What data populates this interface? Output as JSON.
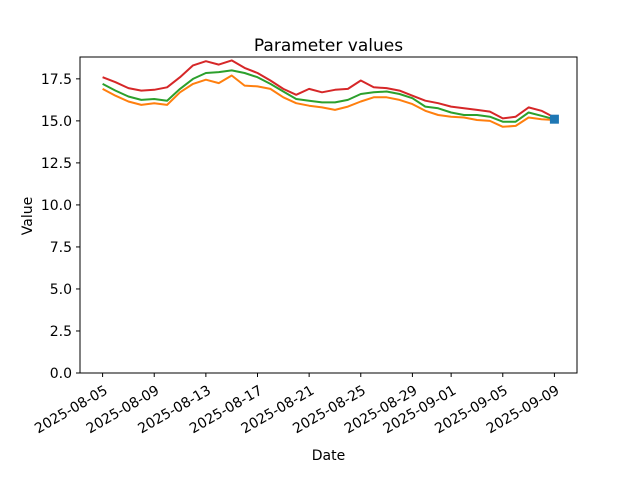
{
  "figure": {
    "background": "#ffffff"
  },
  "chart_data": {
    "type": "line",
    "title": "Parameter values",
    "xlabel": "Date",
    "ylabel": "Value",
    "grid": false,
    "legend": null,
    "x_tick_rotation": 30,
    "ylim": [
      0,
      18.8
    ],
    "yticks": [
      0.0,
      2.5,
      5.0,
      7.5,
      10.0,
      12.5,
      15.0,
      17.5
    ],
    "x": [
      "2025-08-05",
      "2025-08-06",
      "2025-08-07",
      "2025-08-08",
      "2025-08-09",
      "2025-08-10",
      "2025-08-11",
      "2025-08-12",
      "2025-08-13",
      "2025-08-14",
      "2025-08-15",
      "2025-08-16",
      "2025-08-17",
      "2025-08-18",
      "2025-08-19",
      "2025-08-20",
      "2025-08-21",
      "2025-08-22",
      "2025-08-23",
      "2025-08-24",
      "2025-08-25",
      "2025-08-26",
      "2025-08-27",
      "2025-08-28",
      "2025-08-29",
      "2025-08-30",
      "2025-08-31",
      "2025-09-01",
      "2025-09-02",
      "2025-09-03",
      "2025-09-04",
      "2025-09-05",
      "2025-09-06",
      "2025-09-07",
      "2025-09-08",
      "2025-09-09"
    ],
    "xtick_indices": [
      0,
      4,
      8,
      12,
      16,
      20,
      24,
      27,
      31,
      35
    ],
    "xtick_labels": [
      "2025-08-05",
      "2025-08-09",
      "2025-08-13",
      "2025-08-17",
      "2025-08-21",
      "2025-08-25",
      "2025-08-29",
      "2025-09-01",
      "2025-09-05",
      "2025-09-09"
    ],
    "series": [
      {
        "name": "parameter-orange",
        "color": "#ff7f0e",
        "marker": null,
        "values": [
          16.9,
          16.5,
          16.15,
          15.95,
          16.05,
          15.95,
          16.7,
          17.2,
          17.45,
          17.25,
          17.7,
          17.1,
          17.05,
          16.9,
          16.4,
          16.05,
          15.9,
          15.8,
          15.65,
          15.85,
          16.15,
          16.4,
          16.4,
          16.25,
          16.0,
          15.6,
          15.35,
          15.25,
          15.2,
          15.05,
          15.0,
          14.65,
          14.7,
          15.2,
          15.1,
          15.05
        ]
      },
      {
        "name": "parameter-green",
        "color": "#2ca02c",
        "marker": null,
        "values": [
          17.2,
          16.8,
          16.45,
          16.25,
          16.3,
          16.2,
          16.9,
          17.5,
          17.85,
          17.9,
          18.0,
          17.85,
          17.6,
          17.2,
          16.75,
          16.3,
          16.2,
          16.1,
          16.1,
          16.25,
          16.6,
          16.7,
          16.75,
          16.6,
          16.35,
          15.85,
          15.75,
          15.5,
          15.35,
          15.35,
          15.25,
          14.95,
          14.95,
          15.5,
          15.3,
          15.1
        ]
      },
      {
        "name": "parameter-red",
        "color": "#d62728",
        "marker": null,
        "values": [
          17.6,
          17.3,
          16.95,
          16.8,
          16.85,
          17.0,
          17.6,
          18.3,
          18.55,
          18.35,
          18.6,
          18.15,
          17.85,
          17.4,
          16.9,
          16.55,
          16.9,
          16.7,
          16.85,
          16.9,
          17.4,
          17.0,
          16.95,
          16.8,
          16.5,
          16.2,
          16.05,
          15.85,
          15.75,
          15.65,
          15.55,
          15.15,
          15.25,
          15.8,
          15.6,
          15.2
        ]
      },
      {
        "name": "parameter-blue",
        "color": "#1f77b4",
        "marker": "square",
        "values": [
          null,
          null,
          null,
          null,
          null,
          null,
          null,
          null,
          null,
          null,
          null,
          null,
          null,
          null,
          null,
          null,
          null,
          null,
          null,
          null,
          null,
          null,
          null,
          null,
          null,
          null,
          null,
          null,
          null,
          null,
          null,
          null,
          null,
          null,
          null,
          15.1
        ]
      }
    ]
  }
}
